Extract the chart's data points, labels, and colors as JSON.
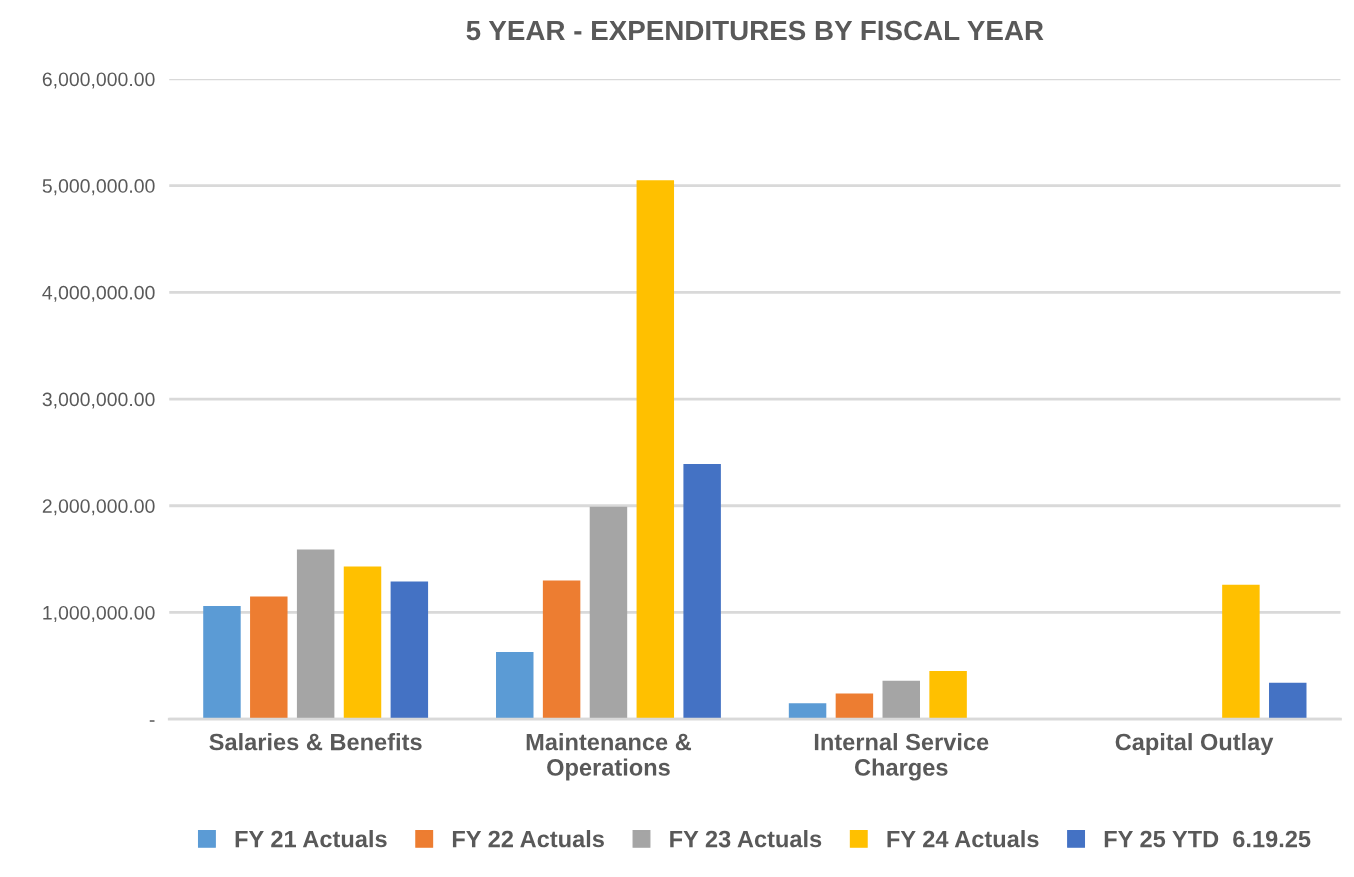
{
  "chart_data": {
    "type": "bar",
    "title": "5 YEAR - EXPENDITURES BY FISCAL YEAR",
    "categories": [
      "Salaries & Benefits",
      "Maintenance &\nOperations",
      "Internal Service\nCharges",
      "Capital Outlay"
    ],
    "series": [
      {
        "name": "FY 21 Actuals",
        "color": "#5b9bd5",
        "values": [
          1060000,
          630000,
          150000,
          0
        ]
      },
      {
        "name": "FY 22 Actuals",
        "color": "#ed7d31",
        "values": [
          1150000,
          1300000,
          240000,
          0
        ]
      },
      {
        "name": "FY 23 Actuals",
        "color": "#a5a5a5",
        "values": [
          1590000,
          1990000,
          360000,
          0
        ]
      },
      {
        "name": "FY 24 Actuals",
        "color": "#ffc000",
        "values": [
          1430000,
          5050000,
          450000,
          1260000
        ]
      },
      {
        "name": "FY 25 YTD  6.19.25",
        "color": "#4472c4",
        "values": [
          1290000,
          2390000,
          0,
          340000
        ]
      }
    ],
    "ylim": [
      0,
      6000000
    ],
    "yticks": [
      {
        "value": 0,
        "label": "-"
      },
      {
        "value": 1000000,
        "label": "1,000,000.00"
      },
      {
        "value": 2000000,
        "label": "2,000,000.00"
      },
      {
        "value": 3000000,
        "label": "3,000,000.00"
      },
      {
        "value": 4000000,
        "label": "4,000,000.00"
      },
      {
        "value": 5000000,
        "label": "5,000,000.00"
      },
      {
        "value": 6000000,
        "label": "6,000,000.00"
      }
    ],
    "grid": "y",
    "legend": "bottom"
  }
}
